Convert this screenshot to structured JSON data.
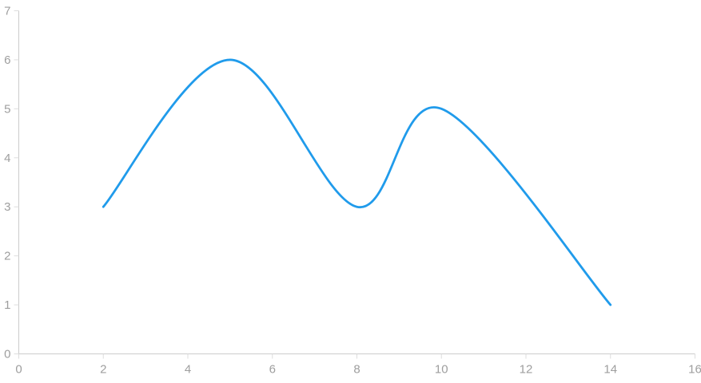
{
  "chart_data": {
    "type": "line",
    "smooth": true,
    "title": "",
    "xlabel": "",
    "ylabel": "",
    "legend": false,
    "grid": false,
    "points": [
      {
        "x": 2,
        "y": 3
      },
      {
        "x": 5,
        "y": 6
      },
      {
        "x": 8,
        "y": 3
      },
      {
        "x": 10,
        "y": 5
      },
      {
        "x": 14,
        "y": 1
      }
    ],
    "xlim": [
      0,
      16
    ],
    "ylim": [
      0,
      7
    ],
    "x_ticks": [
      0,
      2,
      4,
      6,
      8,
      10,
      12,
      14,
      16
    ],
    "y_ticks": [
      0,
      1,
      2,
      3,
      4,
      5,
      6,
      7
    ],
    "colors": {
      "series_line": "#209beb",
      "axis_line": "#cccccc",
      "tick_mark": "#dddddd",
      "tick_label": "#9e9e9e",
      "background": "#ffffff"
    }
  }
}
